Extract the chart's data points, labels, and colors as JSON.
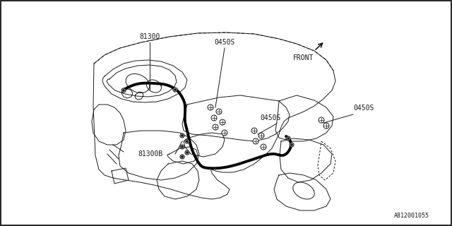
{
  "background_color": "#ffffff",
  "line_color": "#1a1a1a",
  "thick_wire_color": "#000000",
  "label_81300": "81300",
  "label_81300B": "81300B",
  "label_0450S_top": "0450S",
  "label_0450S_mid": "0450S",
  "label_0450S_right": "0450S",
  "label_FRONT": "FRONT",
  "part_number": "A812001055",
  "fig_width": 6.4,
  "fig_height": 3.2,
  "dpi": 100
}
